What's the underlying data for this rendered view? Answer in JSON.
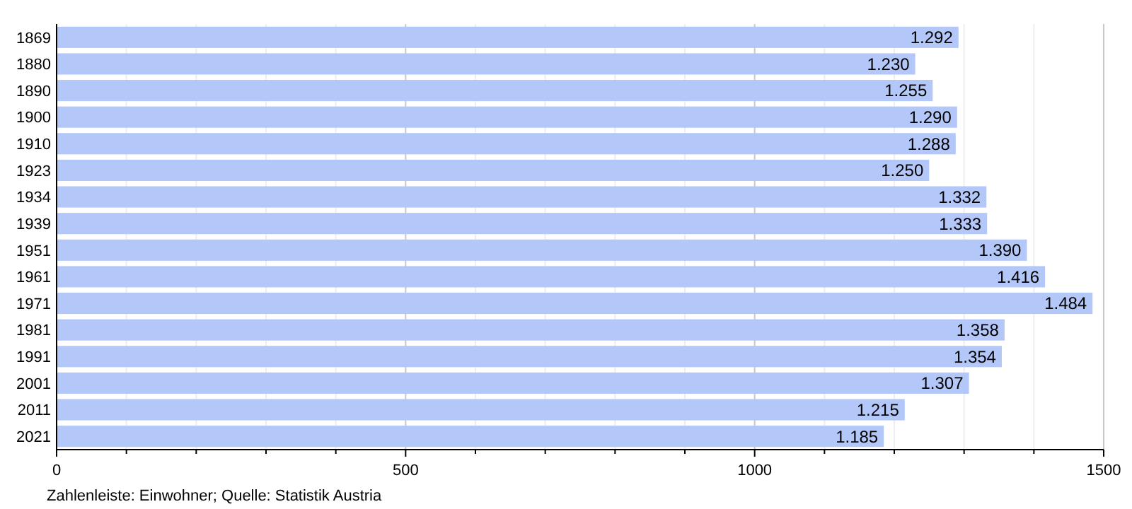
{
  "chart_data": {
    "type": "bar",
    "orientation": "horizontal",
    "categories": [
      "1869",
      "1880",
      "1890",
      "1900",
      "1910",
      "1923",
      "1934",
      "1939",
      "1951",
      "1961",
      "1971",
      "1981",
      "1991",
      "2001",
      "2011",
      "2021"
    ],
    "values": [
      1292,
      1230,
      1255,
      1290,
      1288,
      1250,
      1332,
      1333,
      1390,
      1416,
      1484,
      1358,
      1354,
      1307,
      1215,
      1185
    ],
    "value_labels": [
      "1.292",
      "1.230",
      "1.255",
      "1.290",
      "1.288",
      "1.250",
      "1.332",
      "1.333",
      "1.390",
      "1.416",
      "1.484",
      "1.358",
      "1.354",
      "1.307",
      "1.215",
      "1.185"
    ],
    "color": "#b3c8f8",
    "xlim": [
      0,
      1500
    ],
    "xticks": [
      0,
      {
        "value": 100,
        "label": null
      },
      {
        "value": 200,
        "label": null
      },
      {
        "value": 300,
        "label": null
      },
      {
        "value": 400,
        "label": null
      },
      500,
      {
        "value": 600,
        "label": null
      },
      {
        "value": 700,
        "label": null
      },
      {
        "value": 800,
        "label": null
      },
      {
        "value": 900,
        "label": null
      },
      1000,
      {
        "value": 1100,
        "label": null
      },
      {
        "value": 1200,
        "label": null
      },
      {
        "value": 1300,
        "label": null
      },
      {
        "value": 1400,
        "label": null
      },
      1500
    ],
    "grid": "x",
    "annotations": [
      "Zahlenleiste: Einwohner; Quelle: Statistik Austria"
    ]
  }
}
